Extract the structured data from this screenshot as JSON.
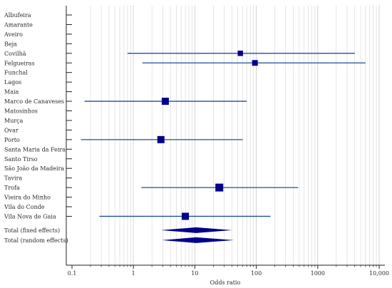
{
  "chart_data": {
    "type": "forest",
    "xlabel": "Odds ratio",
    "xscale": "log",
    "xlim": [
      0.1,
      10000
    ],
    "x_ticks": [
      0.1,
      1,
      10,
      100,
      1000,
      10000
    ],
    "x_tick_labels": [
      "0.1",
      "1",
      "10",
      "100",
      "1000",
      "10,000"
    ],
    "reference_line": 1,
    "colors": {
      "point": "#00008b",
      "ci": "#1f4e9a",
      "summary": "#00008b",
      "grid": "#d9d9d9",
      "reference": "#a9c4df"
    },
    "studies": [
      {
        "name": "Albufeira",
        "or": null,
        "lo": null,
        "hi": null
      },
      {
        "name": "Amarante",
        "or": null,
        "lo": null,
        "hi": null
      },
      {
        "name": "Aveiro",
        "or": null,
        "lo": null,
        "hi": null
      },
      {
        "name": "Beja",
        "or": null,
        "lo": null,
        "hi": null
      },
      {
        "name": "Covilhã",
        "or": 55,
        "lo": 0.8,
        "hi": 4000,
        "weight": 0.5
      },
      {
        "name": "Felgueiras",
        "or": 95,
        "lo": 1.4,
        "hi": 6000,
        "weight": 0.6
      },
      {
        "name": "Funchal",
        "or": null,
        "lo": null,
        "hi": null
      },
      {
        "name": "Lagos",
        "or": null,
        "lo": null,
        "hi": null
      },
      {
        "name": "Maia",
        "or": null,
        "lo": null,
        "hi": null
      },
      {
        "name": "Marco de Canaveses",
        "or": 3.3,
        "lo": 0.16,
        "hi": 70,
        "weight": 1.0
      },
      {
        "name": "Matosinhos",
        "or": null,
        "lo": null,
        "hi": null
      },
      {
        "name": "Murça",
        "or": null,
        "lo": null,
        "hi": null
      },
      {
        "name": "Ovar",
        "or": null,
        "lo": null,
        "hi": null
      },
      {
        "name": "Porto",
        "or": 2.8,
        "lo": 0.14,
        "hi": 60,
        "weight": 1.0
      },
      {
        "name": "Santa Maria da Feira",
        "or": null,
        "lo": null,
        "hi": null
      },
      {
        "name": "Santo Tirso",
        "or": null,
        "lo": null,
        "hi": null
      },
      {
        "name": "São João da Madeira",
        "or": null,
        "lo": null,
        "hi": null
      },
      {
        "name": "Tavira",
        "or": null,
        "lo": null,
        "hi": null
      },
      {
        "name": "Trofa",
        "or": 25,
        "lo": 1.35,
        "hi": 480,
        "weight": 1.2
      },
      {
        "name": "Vieira do Minho",
        "or": null,
        "lo": null,
        "hi": null
      },
      {
        "name": "Vila do Conde",
        "or": null,
        "lo": null,
        "hi": null
      },
      {
        "name": "Vila Nova de Gaia",
        "or": 7,
        "lo": 0.28,
        "hi": 170,
        "weight": 1.0
      }
    ],
    "summaries": [
      {
        "name": "Total (fixed effects)",
        "or": 10.5,
        "lo": 2.8,
        "hi": 40
      },
      {
        "name": "Total (random effects)",
        "or": 10.5,
        "lo": 2.9,
        "hi": 43
      }
    ]
  }
}
